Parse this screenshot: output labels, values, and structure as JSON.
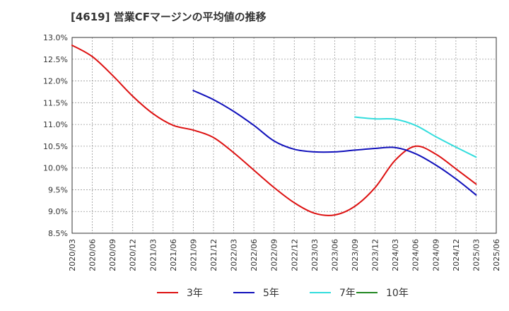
{
  "chart_data": {
    "type": "line",
    "title": "[4619]  営業CFマージンの平均値の推移",
    "xlabel": "",
    "ylabel": "",
    "ylim": [
      8.5,
      13.0
    ],
    "y_ticks": [
      "13.0%",
      "12.5%",
      "12.0%",
      "11.5%",
      "11.0%",
      "10.5%",
      "10.0%",
      "9.5%",
      "9.0%",
      "8.5%"
    ],
    "x_ticks": [
      "2020/03",
      "2020/06",
      "2020/09",
      "2020/12",
      "2021/03",
      "2021/06",
      "2021/09",
      "2021/12",
      "2022/03",
      "2022/06",
      "2022/09",
      "2022/12",
      "2023/03",
      "2023/06",
      "2023/09",
      "2023/12",
      "2024/03",
      "2024/06",
      "2024/09",
      "2024/12",
      "2025/03",
      "2025/06"
    ],
    "grid": true,
    "legend_position": "bottom",
    "series": [
      {
        "name": "3年",
        "color": "#dd1111",
        "points": [
          [
            "2020/03",
            12.82
          ],
          [
            "2020/06",
            12.56
          ],
          [
            "2020/09",
            12.13
          ],
          [
            "2020/12",
            11.65
          ],
          [
            "2021/03",
            11.25
          ],
          [
            "2021/06",
            10.98
          ],
          [
            "2021/09",
            10.87
          ],
          [
            "2021/12",
            10.7
          ],
          [
            "2022/03",
            10.35
          ],
          [
            "2022/06",
            9.95
          ],
          [
            "2022/09",
            9.55
          ],
          [
            "2022/12",
            9.2
          ],
          [
            "2023/03",
            8.96
          ],
          [
            "2023/06",
            8.92
          ],
          [
            "2023/09",
            9.12
          ],
          [
            "2023/12",
            9.55
          ],
          [
            "2024/03",
            10.18
          ],
          [
            "2024/06",
            10.5
          ],
          [
            "2024/09",
            10.32
          ],
          [
            "2024/12",
            9.98
          ],
          [
            "2025/03",
            9.63
          ]
        ]
      },
      {
        "name": "5年",
        "color": "#1111bb",
        "points": [
          [
            "2021/09",
            11.78
          ],
          [
            "2021/12",
            11.57
          ],
          [
            "2022/03",
            11.3
          ],
          [
            "2022/06",
            10.98
          ],
          [
            "2022/09",
            10.62
          ],
          [
            "2022/12",
            10.43
          ],
          [
            "2023/03",
            10.37
          ],
          [
            "2023/06",
            10.37
          ],
          [
            "2023/09",
            10.41
          ],
          [
            "2023/12",
            10.45
          ],
          [
            "2024/03",
            10.47
          ],
          [
            "2024/06",
            10.33
          ],
          [
            "2024/09",
            10.07
          ],
          [
            "2024/12",
            9.75
          ],
          [
            "2025/03",
            9.38
          ]
        ]
      },
      {
        "name": "7年",
        "color": "#33dddd",
        "points": [
          [
            "2023/09",
            11.17
          ],
          [
            "2023/12",
            11.13
          ],
          [
            "2024/03",
            11.12
          ],
          [
            "2024/06",
            10.98
          ],
          [
            "2024/09",
            10.72
          ],
          [
            "2024/12",
            10.48
          ],
          [
            "2025/03",
            10.25
          ]
        ]
      },
      {
        "name": "10年",
        "color": "#228822",
        "points": []
      }
    ]
  }
}
